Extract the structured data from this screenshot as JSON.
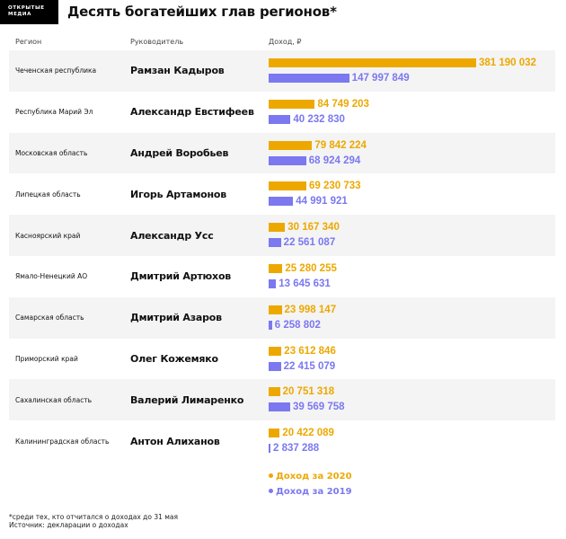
{
  "logo": {
    "line1": "ОТКРЫТЫЕ",
    "line2": "МЕДИА"
  },
  "title": "Десять богатейших глав регионов*",
  "columns": {
    "region": "Регион",
    "leader": "Руководитель",
    "income": "Доход, ₽"
  },
  "colors": {
    "y2020": "#EDA800",
    "y2019": "#7B78F0",
    "row_alt": "#F4F4F4"
  },
  "rows": [
    {
      "region": "Чеченская республика",
      "leader": "Рамзан Кадыров",
      "v2020": "381 190 032",
      "v2019": "147 997 849",
      "n2020": 381190032,
      "n2019": 147997849
    },
    {
      "region": "Республика Марий Эл",
      "leader": "Александр Евстифеев",
      "v2020": "84 749 203",
      "v2019": "40 232 830",
      "n2020": 84749203,
      "n2019": 40232830
    },
    {
      "region": "Московская область",
      "leader": "Андрей Воробьев",
      "v2020": "79 842 224",
      "v2019": "68 924 294",
      "n2020": 79842224,
      "n2019": 68924294
    },
    {
      "region": "Липецкая область",
      "leader": "Игорь Артамонов",
      "v2020": "69 230 733",
      "v2019": "44 991 921",
      "n2020": 69230733,
      "n2019": 44991921
    },
    {
      "region": "Касноярский край",
      "leader": "Александр Усс",
      "v2020": "30 167 340",
      "v2019": "22 561 087",
      "n2020": 30167340,
      "n2019": 22561087
    },
    {
      "region": "Ямало-Ненецкий АО",
      "leader": "Дмитрий Артюхов",
      "v2020": "25 280 255",
      "v2019": "13 645 631",
      "n2020": 25280255,
      "n2019": 13645631
    },
    {
      "region": "Самарская область",
      "leader": "Дмитрий Азаров",
      "v2020": "23 998 147",
      "v2019": "6 258 802",
      "n2020": 23998147,
      "n2019": 6258802
    },
    {
      "region": "Приморский край",
      "leader": "Олег Кожемяко",
      "v2020": "23 612 846",
      "v2019": "22 415 079",
      "n2020": 23612846,
      "n2019": 22415079
    },
    {
      "region": "Сахалинская область",
      "leader": "Валерий Лимаренко",
      "v2020": "20 751 318",
      "v2019": "39 569 758",
      "n2020": 20751318,
      "n2019": 39569758
    },
    {
      "region": "Калининградская область",
      "leader": "Антон Алиханов",
      "v2020": "20 422 089",
      "v2019": "2 837 288",
      "n2020": 20422089,
      "n2019": 2837288
    }
  ],
  "legend": {
    "y2020": "Доход за 2020",
    "y2019": "Доход за 2019"
  },
  "notes": {
    "footnote": "*среди тех, кто отчитался о доходах до 31 мая",
    "source": "Источник: декларации о доходах"
  },
  "chart_data": {
    "type": "bar",
    "orientation": "horizontal",
    "title": "Десять богатейших глав регионов*",
    "xlabel": "Доход, ₽",
    "ylabel": "",
    "categories": [
      "Чеченская республика",
      "Республика Марий Эл",
      "Московская область",
      "Липецкая область",
      "Касноярский край",
      "Ямало-Ненецкий АО",
      "Самарская область",
      "Приморский край",
      "Сахалинская область",
      "Калининградская область"
    ],
    "leaders": [
      "Рамзан Кадыров",
      "Александр Евстифеев",
      "Андрей Воробьев",
      "Игорь Артамонов",
      "Александр Усс",
      "Дмитрий Артюхов",
      "Дмитрий Азаров",
      "Олег Кожемяко",
      "Валерий Лимаренко",
      "Антон Алиханов"
    ],
    "series": [
      {
        "name": "Доход за 2020",
        "color": "#EDA800",
        "values": [
          381190032,
          84749203,
          79842224,
          69230733,
          30167340,
          25280255,
          23998147,
          23612846,
          20751318,
          20422089
        ]
      },
      {
        "name": "Доход за 2019",
        "color": "#7B78F0",
        "values": [
          147997849,
          40232830,
          68924294,
          44991921,
          22561087,
          13645631,
          6258802,
          22415079,
          39569758,
          2837288
        ]
      }
    ],
    "legend_position": "bottom-right",
    "grid": false,
    "data_labels": true,
    "annotations": [
      "*среди тех, кто отчитался о доходах до 31 мая",
      "Источник: декларации о доходах"
    ]
  }
}
